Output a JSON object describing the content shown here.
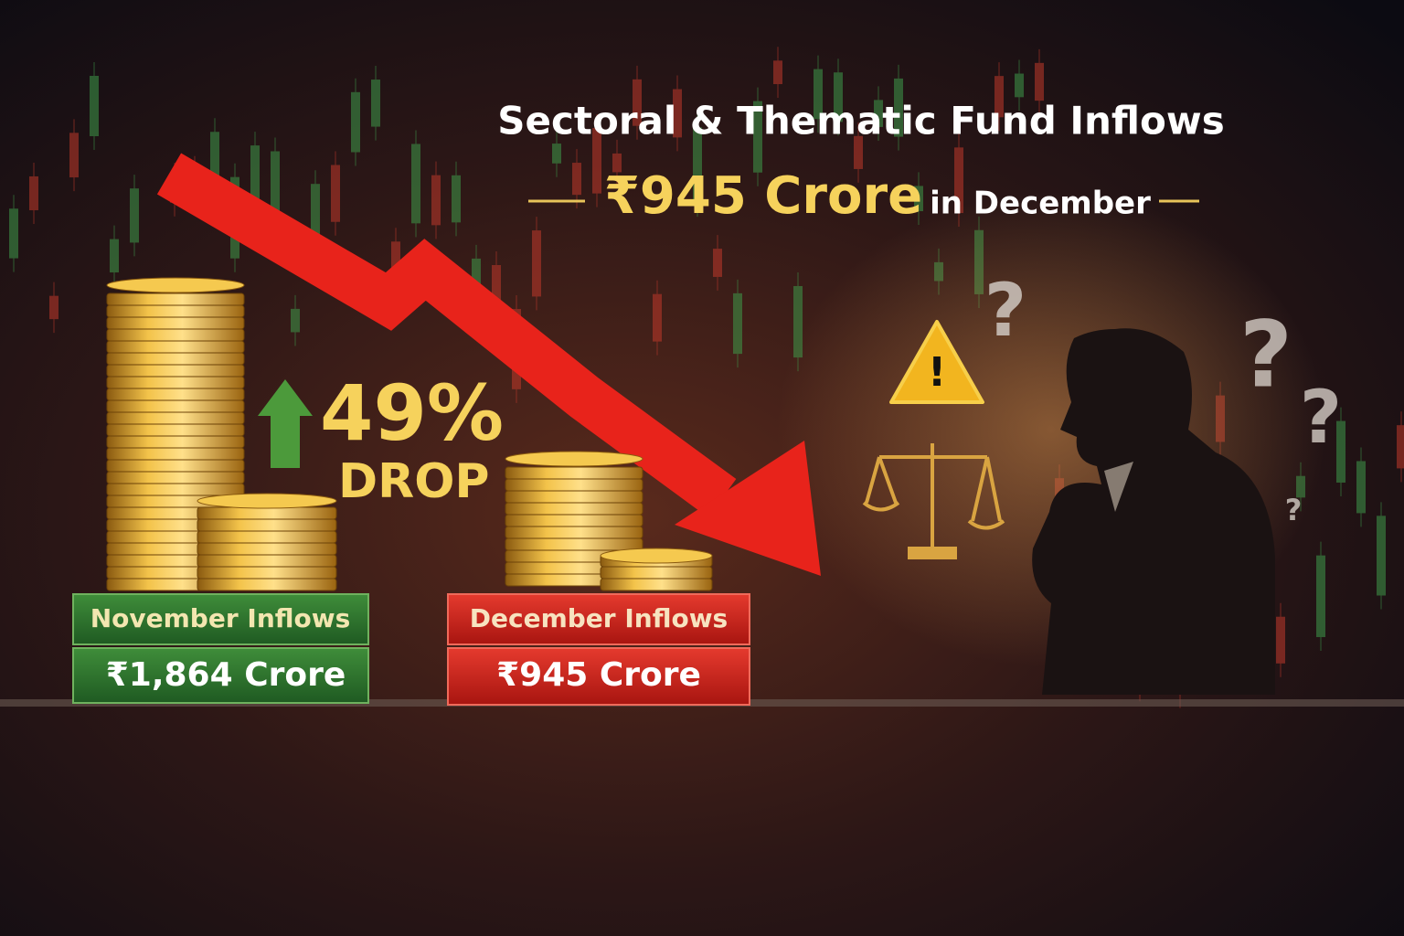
{
  "header": {
    "title": "Sectoral & Thematic Fund Inflows",
    "amount": "₹945 Crore",
    "suffix": "in December"
  },
  "callout": {
    "percent": "49%",
    "label": "DROP"
  },
  "cards": [
    {
      "label": "November Inflows",
      "value": "₹1,864 Crore"
    },
    {
      "label": "December Inflows",
      "value": "₹945 Crore"
    }
  ],
  "icons": {
    "warning": "!",
    "question_marks": [
      "?",
      "?",
      "?",
      "?"
    ]
  }
}
